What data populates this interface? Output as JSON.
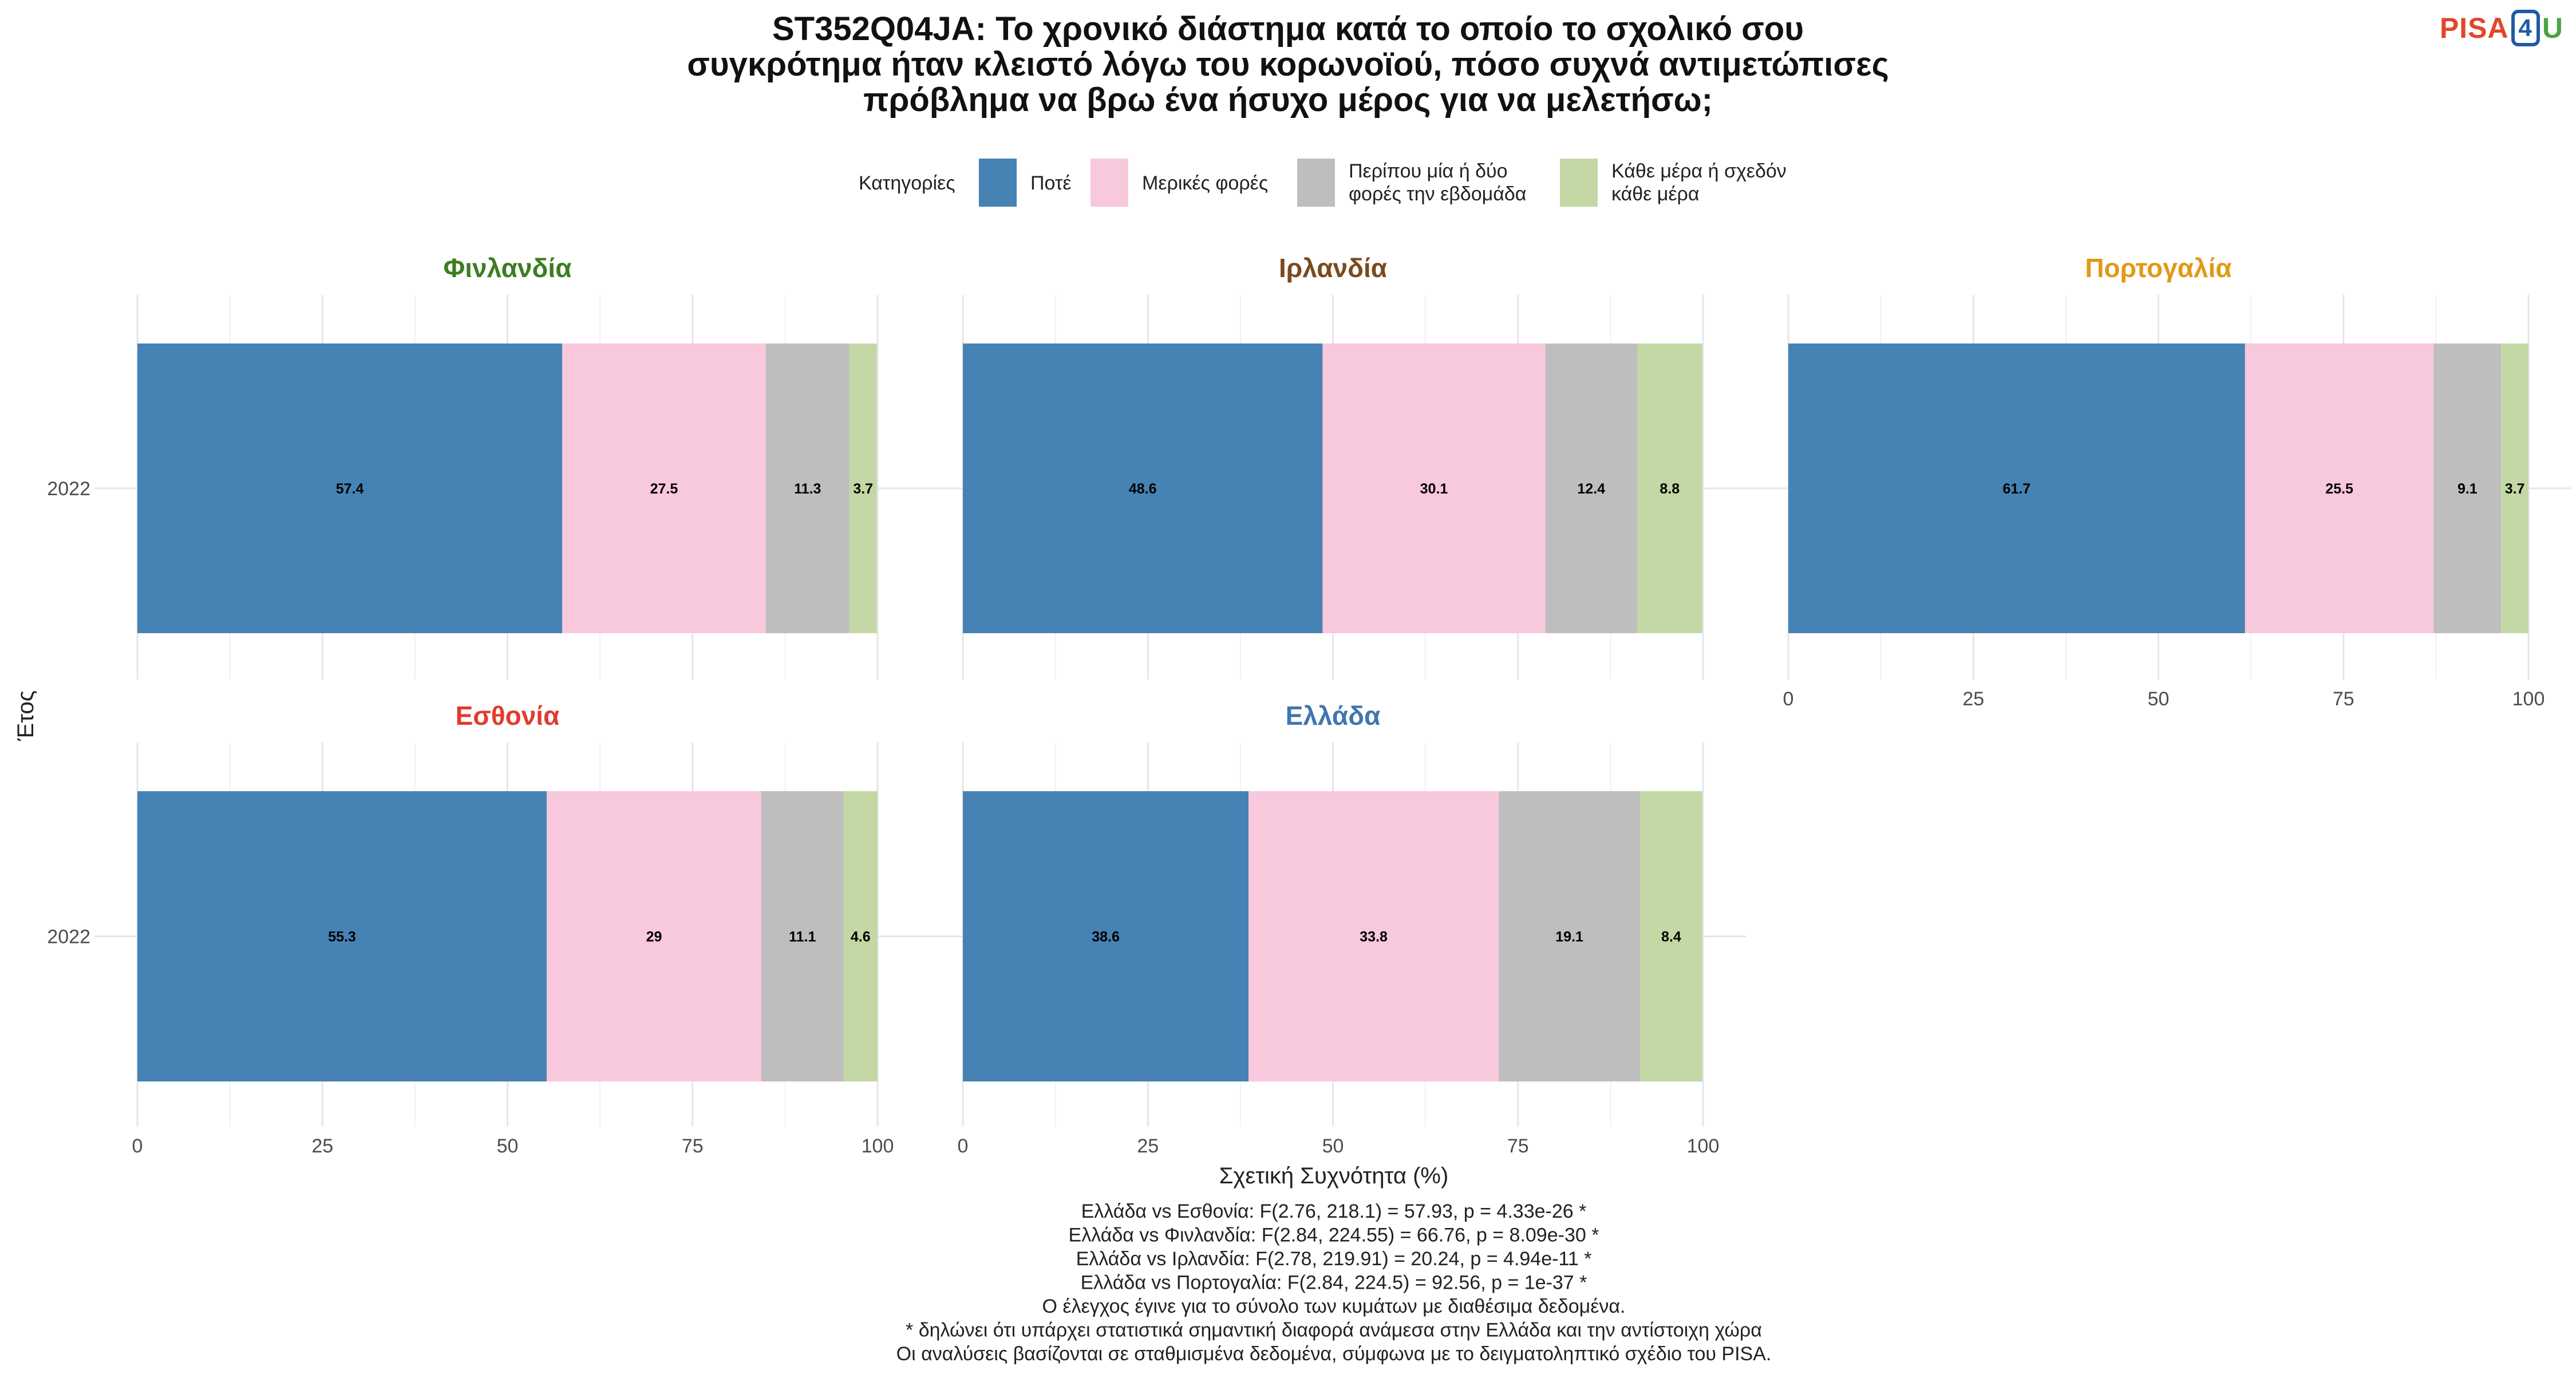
{
  "title_lines": [
    "ST352Q04JA: Το χρονικό διάστημα κατά το οποίο το σχολικό σου",
    "συγκρότημα ήταν κλειστό λόγω του κορωνοϊού, πόσο συχνά αντιμετώπισες",
    "πρόβλημα να βρω ένα ήσυχο μέρος για να μελετήσω;"
  ],
  "logo": {
    "left": "PISA",
    "mid": "4",
    "right": "U"
  },
  "legend": {
    "title": "Κατηγορίες",
    "items": [
      {
        "lines": [
          "Ποτέ"
        ],
        "color": "#4682b4"
      },
      {
        "lines": [
          "Μερικές φορές"
        ],
        "color": "#f8c8dc"
      },
      {
        "lines": [
          "Περίπου μία ή δύο",
          "φορές την εβδομάδα"
        ],
        "color": "#bebebe"
      },
      {
        "lines": [
          "Κάθε μέρα ή σχεδόν",
          "κάθε μέρα"
        ],
        "color": "#c3d8a4"
      }
    ]
  },
  "chart_data": {
    "type": "bar",
    "orientation": "horizontal",
    "stacked": true,
    "xlabel": "Σχετική Συχνότητα (%)",
    "ylabel": "Έτος",
    "xlim": [
      0,
      100
    ],
    "xticks": [
      0,
      25,
      50,
      75,
      100
    ],
    "series_names": [
      "Ποτέ",
      "Μερικές φορές",
      "Περίπου μία ή δύο φορές την εβδομάδα",
      "Κάθε μέρα ή σχεδόν κάθε μέρα"
    ],
    "panels": [
      {
        "name": "Φινλανδία",
        "title_color": "#3c7d22",
        "year": "2022",
        "values": [
          57.4,
          27.5,
          11.3,
          3.7
        ]
      },
      {
        "name": "Ιρλανδία",
        "title_color": "#7a4a1e",
        "year": "2022",
        "values": [
          48.6,
          30.1,
          12.4,
          8.8
        ]
      },
      {
        "name": "Πορτογαλία",
        "title_color": "#e09a16",
        "year": "2022",
        "values": [
          61.7,
          25.5,
          9.1,
          3.7
        ]
      },
      {
        "name": "Εσθονία",
        "title_color": "#e23b2e",
        "year": "2022",
        "values": [
          55.3,
          29,
          11.1,
          4.6
        ]
      },
      {
        "name": "Ελλάδα",
        "title_color": "#3f77b0",
        "year": "2022",
        "values": [
          38.6,
          33.8,
          19.1,
          8.4
        ]
      }
    ]
  },
  "caption_lines": [
    "Ελλάδα vs Εσθονία: F(2.76, 218.1) = 57.93, p = 4.33e-26 *",
    "Ελλάδα vs Φινλανδία: F(2.84, 224.55) = 66.76, p = 8.09e-30 *",
    "Ελλάδα vs Ιρλανδία: F(2.78, 219.91) = 20.24, p = 4.94e-11 *",
    "Ελλάδα vs Πορτογαλία: F(2.84, 224.5) = 92.56, p = 1e-37 *",
    "Ο έλεγχος έγινε για το σύνολο των κυμάτων με διαθέσιμα δεδομένα.",
    "* δηλώνει ότι υπάρχει στατιστικά σημαντική διαφορά ανάμεσα στην Ελλάδα και την αντίστοιχη χώρα",
    "Οι αναλύσεις βασίζονται σε σταθμισμένα δεδομένα, σύμφωνα με το δειγματοληπτικό σχέδιο του PISA."
  ]
}
